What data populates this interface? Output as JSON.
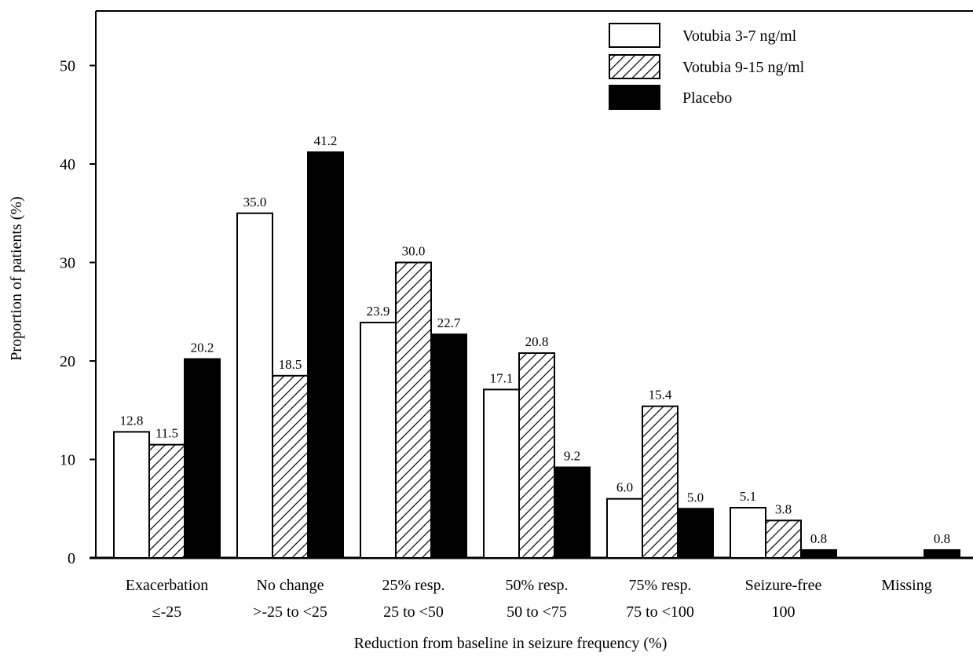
{
  "chart_data": {
    "type": "bar",
    "categories": [
      {
        "line1": "Exacerbation",
        "line2": "≤-25"
      },
      {
        "line1": "No change",
        "line2": ">-25 to <25"
      },
      {
        "line1": "25% resp.",
        "line2": "25 to <50"
      },
      {
        "line1": "50% resp.",
        "line2": "50 to <75"
      },
      {
        "line1": "75% resp.",
        "line2": "75 to <100"
      },
      {
        "line1": "Seizure-free",
        "line2": "100"
      },
      {
        "line1": "Missing",
        "line2": ""
      }
    ],
    "series": [
      {
        "name": "Votubia 3-7 ng/ml",
        "style": "open",
        "values": [
          12.8,
          35.0,
          23.9,
          17.1,
          6.0,
          5.1,
          null
        ],
        "labels": [
          "12.8",
          "35.0",
          "23.9",
          "17.1",
          "6.0",
          "5.1",
          ""
        ]
      },
      {
        "name": "Votubia 9-15 ng/ml",
        "style": "hatched",
        "values": [
          11.5,
          18.5,
          30.0,
          20.8,
          15.4,
          3.8,
          null
        ],
        "labels": [
          "11.5",
          "18.5",
          "30.0",
          "20.8",
          "15.4",
          "3.8",
          ""
        ]
      },
      {
        "name": "Placebo",
        "style": "solid",
        "values": [
          20.2,
          41.2,
          22.7,
          9.2,
          5.0,
          0.8,
          0.8
        ],
        "labels": [
          "20.2",
          "41.2",
          "22.7",
          "9.2",
          "5.0",
          "0.8",
          "0.8"
        ]
      }
    ],
    "xlabel": "Reduction from baseline in seizure frequency (%)",
    "ylabel": "Proportion of patients (%)",
    "ylim": [
      0,
      55
    ],
    "yticks": [
      "0",
      "10",
      "20",
      "30",
      "40",
      "50"
    ],
    "grid": false,
    "legend_position": "top-right",
    "colors": {
      "open": "#ffffff",
      "solid": "#000000",
      "stroke": "#000000"
    }
  }
}
